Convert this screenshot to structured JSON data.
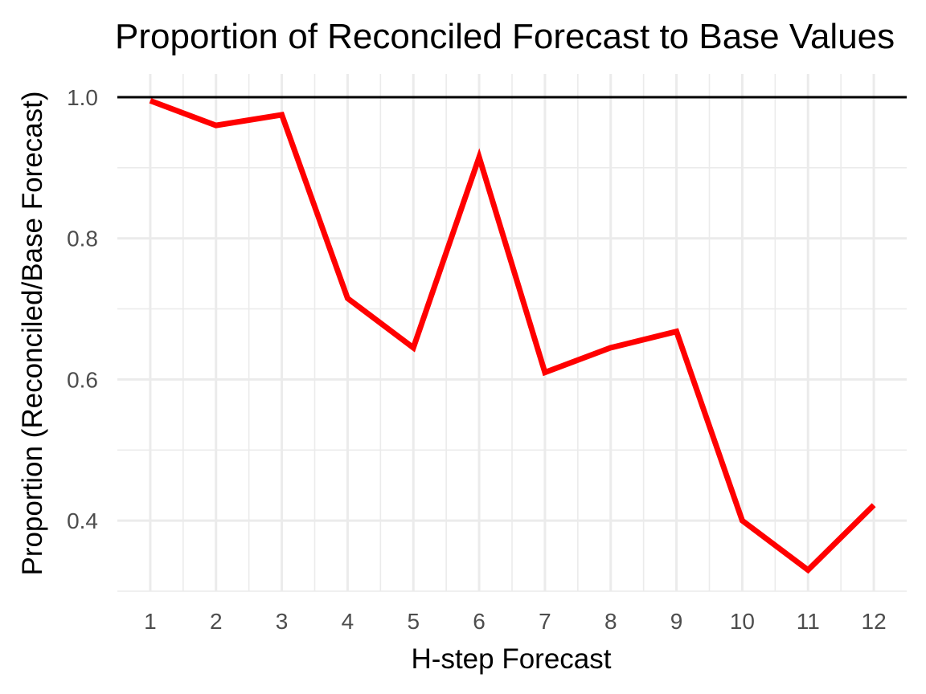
{
  "chart_data": {
    "type": "line",
    "title": "Proportion of Reconciled Forecast to Base Values",
    "xlabel": "H-step Forecast",
    "ylabel": "Proportion (Reconciled/Base Forecast)",
    "x": [
      1,
      2,
      3,
      4,
      5,
      6,
      7,
      8,
      9,
      10,
      11,
      12
    ],
    "x_tick_labels": [
      "1",
      "2",
      "3",
      "4",
      "5",
      "6",
      "7",
      "8",
      "9",
      "10",
      "11",
      "12"
    ],
    "y_tick_labels": [
      "0.4",
      "0.6",
      "0.8",
      "1.0"
    ],
    "y_ticks": [
      0.4,
      0.6,
      0.8,
      1.0
    ],
    "series": [
      {
        "values": [
          0.995,
          0.96,
          0.975,
          0.715,
          0.645,
          0.915,
          0.61,
          0.645,
          0.668,
          0.4,
          0.33,
          0.422
        ],
        "color": "#ff0000"
      }
    ],
    "reference_line": {
      "y": 1.0,
      "color": "#000000"
    },
    "xlim": [
      0.5,
      12.5
    ],
    "ylim": [
      0.3,
      1.033
    ],
    "grid": true,
    "legend": "none"
  }
}
